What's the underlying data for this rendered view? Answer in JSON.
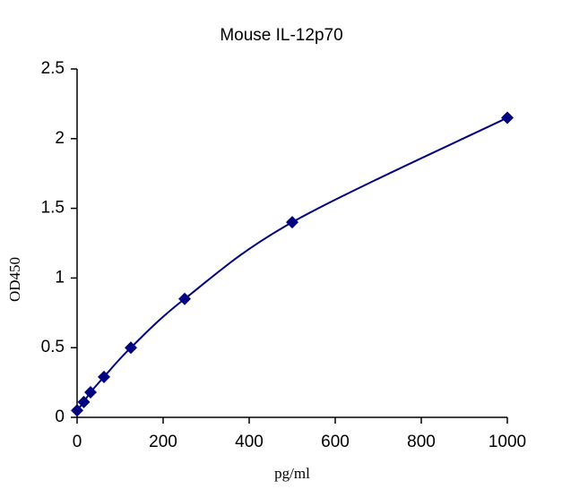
{
  "chart_data": {
    "type": "scatter",
    "title": "Mouse  IL-12p70",
    "x_label": "pg/ml",
    "y_label": "OD450",
    "series": [
      {
        "color": "#000080",
        "x": [
          0,
          15.6,
          31.25,
          62.5,
          125,
          250,
          500,
          1000
        ],
        "values": [
          0.05,
          0.11,
          0.18,
          0.29,
          0.5,
          0.85,
          1.4,
          2.15
        ]
      }
    ],
    "xlim": [
      0,
      1000
    ],
    "xticks": [
      0,
      200,
      400,
      600,
      800,
      1000
    ],
    "ylim": [
      0,
      2.5
    ],
    "yticks": [
      0,
      0.5,
      1,
      1.5,
      2,
      2.5
    ],
    "grid": false
  }
}
